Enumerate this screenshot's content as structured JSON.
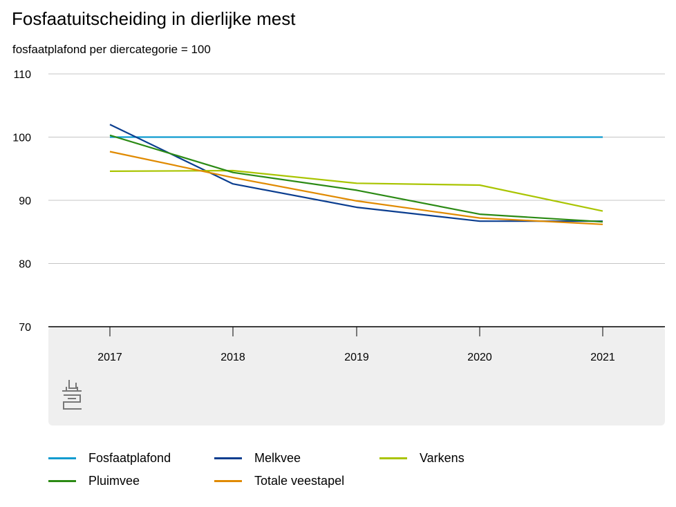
{
  "chart_data": {
    "type": "line",
    "title": "Fosfaatuitscheiding in dierlijke mest",
    "subtitle": "fosfaatplafond per diercategorie = 100",
    "x": [
      "2017",
      "2018",
      "2019",
      "2020",
      "2021"
    ],
    "ylim": [
      70,
      110
    ],
    "yticks": [
      "110",
      "100",
      "90",
      "80",
      "70"
    ],
    "grid": true,
    "legend_position": "bottom",
    "series": [
      {
        "name": "Fosfaatplafond",
        "color": "#0d9bcf",
        "values": [
          100,
          100,
          100,
          100,
          100
        ]
      },
      {
        "name": "Melkvee",
        "color": "#0a3d8f",
        "values": [
          102.0,
          92.6,
          88.9,
          86.7,
          86.7
        ]
      },
      {
        "name": "Varkens",
        "color": "#a9c400",
        "values": [
          94.6,
          94.7,
          92.7,
          92.4,
          88.3
        ]
      },
      {
        "name": "Pluimvee",
        "color": "#2b8a14",
        "values": [
          100.3,
          94.4,
          91.6,
          87.8,
          86.6
        ]
      },
      {
        "name": "Totale veestapel",
        "color": "#e08a00",
        "values": [
          97.7,
          93.6,
          89.9,
          87.2,
          86.2
        ]
      }
    ]
  }
}
